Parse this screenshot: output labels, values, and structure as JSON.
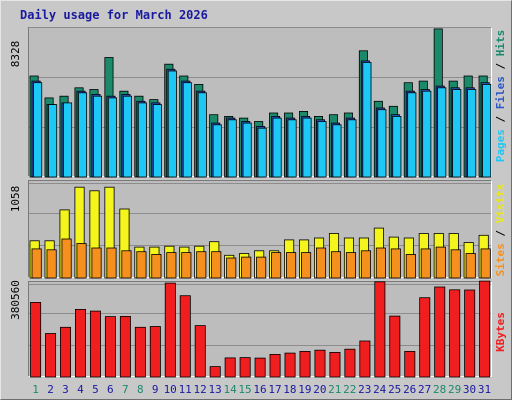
{
  "chart_data": [
    {
      "type": "bar",
      "title": "Daily usage for March 2026",
      "ytick": "8328",
      "ymax": 8328,
      "categories": [
        "1",
        "2",
        "3",
        "4",
        "5",
        "6",
        "7",
        "8",
        "9",
        "10",
        "11",
        "12",
        "13",
        "14",
        "15",
        "16",
        "17",
        "18",
        "19",
        "20",
        "21",
        "22",
        "23",
        "24",
        "25",
        "26",
        "27",
        "28",
        "29",
        "30",
        "31"
      ],
      "legend": [
        "Pages",
        "Files",
        "Hits"
      ],
      "series": [
        {
          "name": "Hits",
          "values": [
            6000,
            4700,
            4800,
            5300,
            5200,
            7100,
            5100,
            4800,
            4600,
            6700,
            6000,
            5500,
            3700,
            3600,
            3500,
            3300,
            3800,
            3800,
            3900,
            3600,
            3700,
            3800,
            7500,
            4500,
            4200,
            5600,
            5700,
            8800,
            5700,
            6000,
            6000
          ]
        },
        {
          "name": "Files",
          "values": [
            5700,
            4300,
            4400,
            5100,
            4900,
            4800,
            4900,
            4500,
            4400,
            6400,
            5700,
            5100,
            3200,
            3500,
            3300,
            3000,
            3600,
            3500,
            3600,
            3400,
            3200,
            3500,
            6900,
            4100,
            3700,
            5100,
            5200,
            5400,
            5300,
            5300,
            5600
          ]
        },
        {
          "name": "Pages",
          "values": [
            5600,
            4300,
            4400,
            5000,
            4800,
            4700,
            4800,
            4400,
            4300,
            6300,
            5600,
            5000,
            3100,
            3400,
            3200,
            2900,
            3500,
            3400,
            3500,
            3300,
            3100,
            3400,
            6800,
            4000,
            3600,
            5000,
            5100,
            5300,
            5200,
            5200,
            5500
          ]
        }
      ],
      "colors": {
        "Hits": "#1b8a6b",
        "Files": "#2c57c9",
        "Pages": "#1ec8f5"
      }
    },
    {
      "type": "bar",
      "ytick": "1058",
      "ymax": 1058,
      "legend": [
        "Sites",
        "Visits"
      ],
      "series": [
        {
          "name": "Visits",
          "values": [
            410,
            410,
            750,
            1000,
            960,
            1000,
            760,
            340,
            340,
            350,
            340,
            350,
            400,
            250,
            270,
            300,
            300,
            420,
            420,
            440,
            490,
            440,
            440,
            550,
            450,
            440,
            490,
            490,
            490,
            390,
            470
          ]
        },
        {
          "name": "Sites",
          "values": [
            320,
            310,
            430,
            380,
            330,
            330,
            300,
            290,
            260,
            280,
            280,
            290,
            290,
            220,
            230,
            230,
            280,
            280,
            280,
            330,
            290,
            280,
            300,
            330,
            320,
            260,
            320,
            340,
            310,
            270,
            320
          ]
        }
      ],
      "colors": {
        "Visits": "#f5f51e",
        "Sites": "#f5901e"
      }
    },
    {
      "type": "bar",
      "ytick": "380560",
      "ymax": 380560,
      "legend": [
        "KBytes"
      ],
      "series": [
        {
          "name": "KBytes",
          "values": [
            300000,
            175000,
            200000,
            272000,
            265000,
            243000,
            244000,
            200000,
            203000,
            378000,
            327000,
            207000,
            42000,
            77000,
            78000,
            76000,
            91000,
            96000,
            103000,
            108000,
            99000,
            112000,
            145000,
            383000,
            245000,
            103000,
            319000,
            362000,
            351000,
            350000,
            386000
          ]
        }
      ],
      "colors": {
        "KBytes": "#f01e1e"
      }
    }
  ],
  "day_label_colors": [
    "#1b8a6b",
    "#1a1aa0",
    "#1a1aa0",
    "#1a1aa0",
    "#1a1aa0",
    "#1a1aa0",
    "#1b8a6b",
    "#1b8a6b",
    "#1a1aa0",
    "#1a1aa0",
    "#1a1aa0",
    "#1a1aa0",
    "#1a1aa0",
    "#1b8a6b",
    "#1b8a6b",
    "#1a1aa0",
    "#1a1aa0",
    "#1a1aa0",
    "#1a1aa0",
    "#1a1aa0",
    "#1b8a6b",
    "#1b8a6b",
    "#1a1aa0",
    "#1a1aa0",
    "#1a1aa0",
    "#1a1aa0",
    "#1a1aa0",
    "#1b8a6b",
    "#1b8a6b",
    "#1a1aa0",
    "#1a1aa0"
  ],
  "title_color": "#1a1aa0",
  "separator_color": "#000000"
}
